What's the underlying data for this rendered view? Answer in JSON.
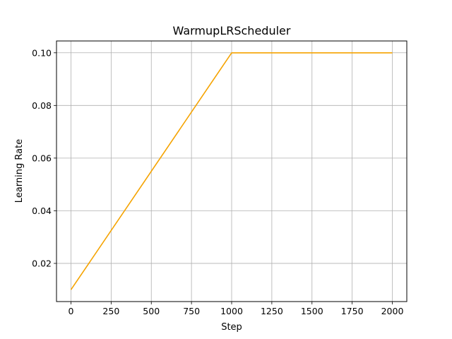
{
  "chart_data": {
    "type": "line",
    "title": "WarmupLRScheduler",
    "xlabel": "Step",
    "ylabel": "Learning Rate",
    "xlim": [
      -90,
      2090
    ],
    "ylim": [
      0.0055,
      0.1045
    ],
    "xticks": [
      0,
      250,
      500,
      750,
      1000,
      1250,
      1500,
      1750,
      2000
    ],
    "xtick_labels": [
      "0",
      "250",
      "500",
      "750",
      "1000",
      "1250",
      "1500",
      "1750",
      "2000"
    ],
    "yticks": [
      0.02,
      0.04,
      0.06,
      0.08,
      0.1
    ],
    "ytick_labels": [
      "0.02",
      "0.04",
      "0.06",
      "0.08",
      "0.10"
    ],
    "grid": true,
    "series": [
      {
        "color": "#f5a300",
        "x": [
          0,
          1000,
          2000
        ],
        "y": [
          0.01,
          0.1,
          0.1
        ]
      }
    ]
  }
}
